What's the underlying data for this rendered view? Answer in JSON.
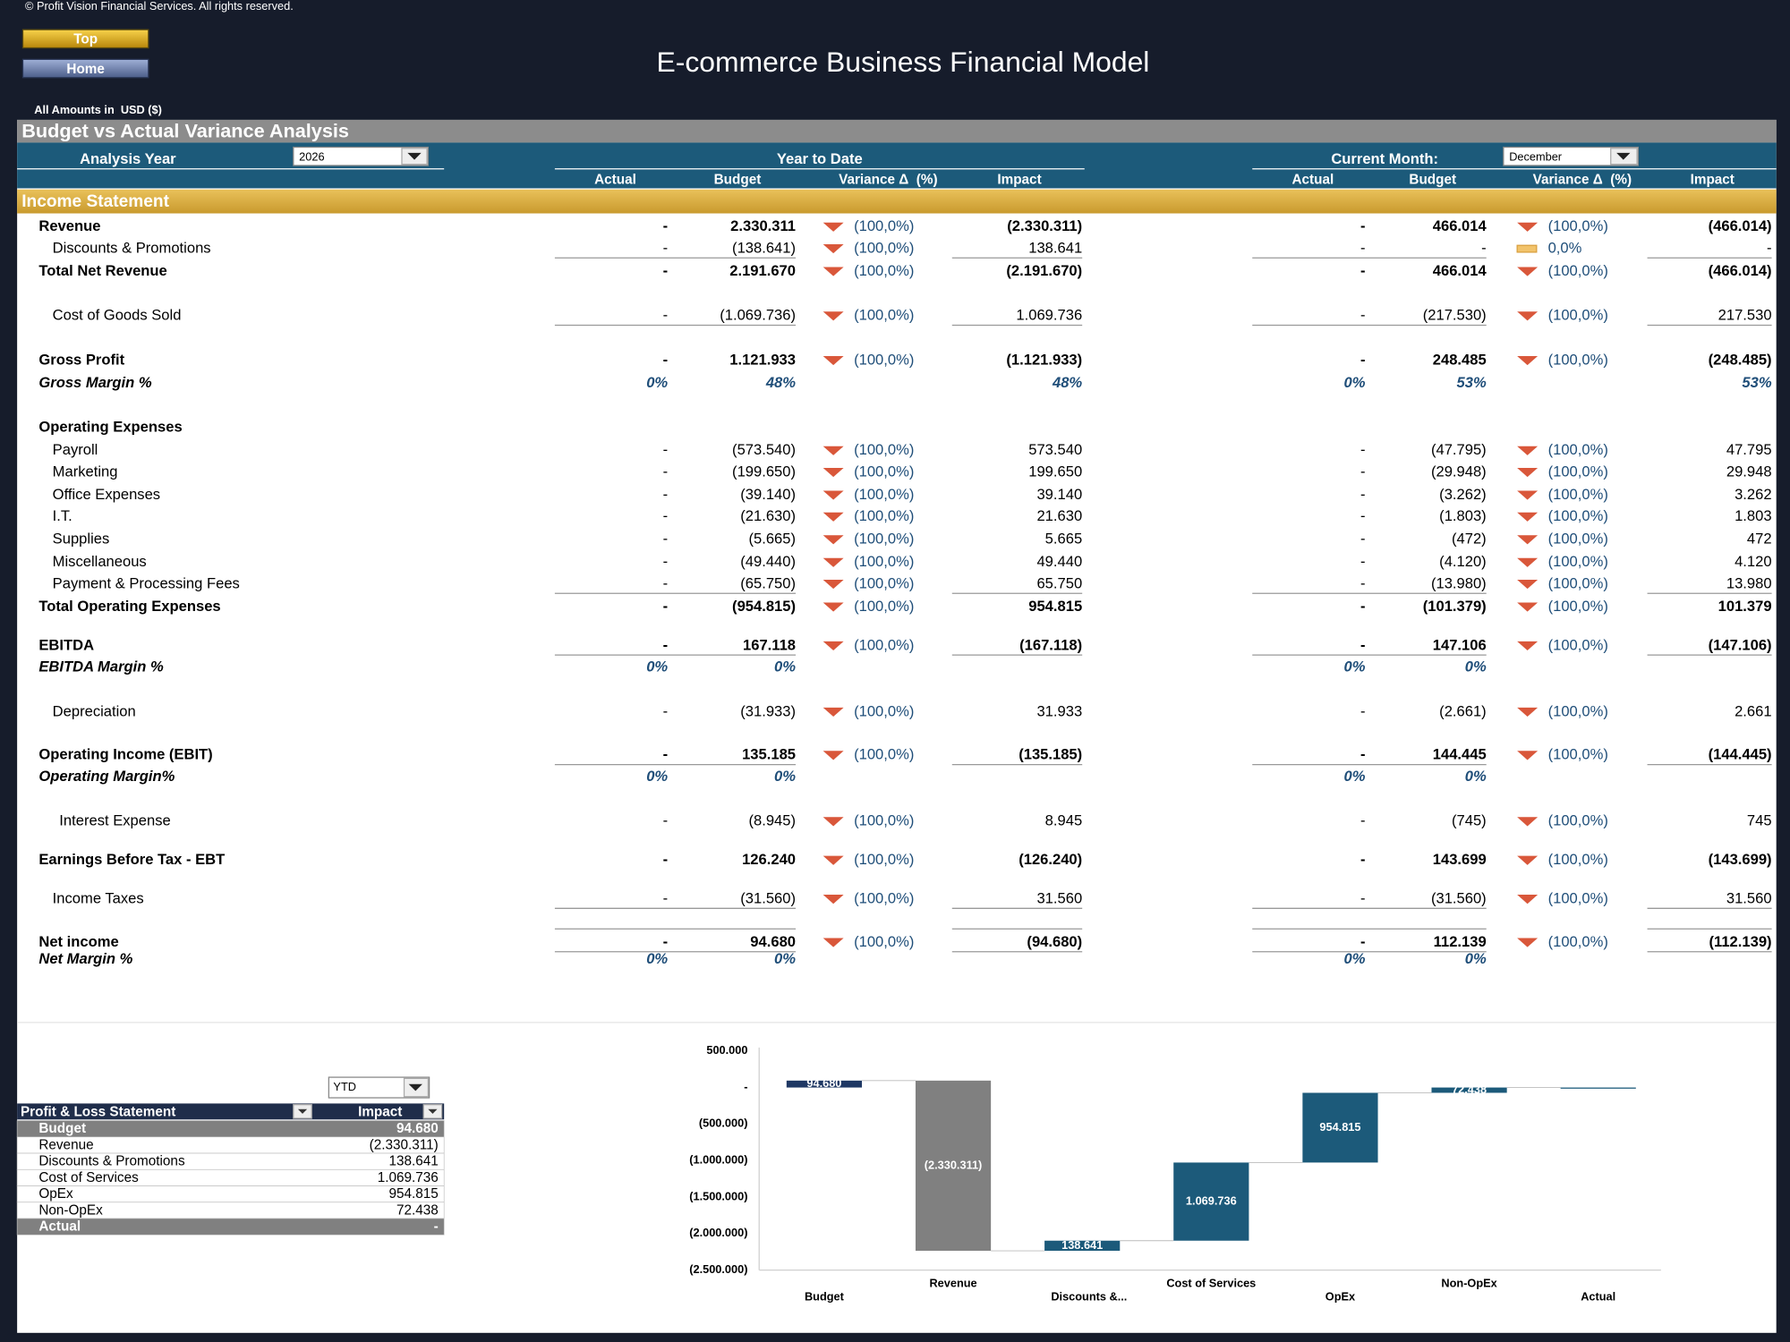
{
  "header": {
    "copyright": "© Profit Vision Financial Services. All rights reserved.",
    "buttons": [
      "Top",
      "Home"
    ],
    "title": "E-commerce Business Financial Model",
    "units": "All Amounts in  USD ($)"
  },
  "section": {
    "title": "Budget vs Actual Variance Analysis",
    "analysis_year_label": "Analysis Year",
    "analysis_year": "2026",
    "ytd_label": "Year to Date",
    "month_label": "Current Month:",
    "month": "December",
    "columns": [
      "Actual",
      "Budget",
      "Variance Δ  (%)",
      "Impact"
    ],
    "statement_title": "Income Statement"
  },
  "table": {
    "rows": [
      [
        "Revenue",
        "-",
        "2.330.311",
        "(100,0%)",
        "(2.330.311)",
        "-",
        "466.014",
        "(100,0%)",
        "(466.014)"
      ],
      [
        "Discounts & Promotions",
        "-",
        "(138.641)",
        "(100,0%)",
        "138.641",
        "-",
        "-",
        "0,0%",
        "-"
      ],
      [
        "Total Net Revenue",
        "-",
        "2.191.670",
        "(100,0%)",
        "(2.191.670)",
        "-",
        "466.014",
        "(100,0%)",
        "(466.014)"
      ],
      [
        "Cost of Goods Sold",
        "-",
        "(1.069.736)",
        "(100,0%)",
        "1.069.736",
        "-",
        "(217.530)",
        "(100,0%)",
        "217.530"
      ],
      [
        "Gross Profit",
        "-",
        "1.121.933",
        "(100,0%)",
        "(1.121.933)",
        "-",
        "248.485",
        "(100,0%)",
        "(248.485)"
      ],
      [
        "Gross Margin %",
        "0%",
        "48%",
        null,
        "48%",
        "0%",
        "53%",
        null,
        "53%"
      ],
      [
        "Operating Expenses",
        null,
        null,
        null,
        null,
        null,
        null,
        null,
        null
      ],
      [
        "Payroll",
        "-",
        "(573.540)",
        "(100,0%)",
        "573.540",
        "-",
        "(47.795)",
        "(100,0%)",
        "47.795"
      ],
      [
        "Marketing",
        "-",
        "(199.650)",
        "(100,0%)",
        "199.650",
        "-",
        "(29.948)",
        "(100,0%)",
        "29.948"
      ],
      [
        "Office Expenses",
        "-",
        "(39.140)",
        "(100,0%)",
        "39.140",
        "-",
        "(3.262)",
        "(100,0%)",
        "3.262"
      ],
      [
        "I.T.",
        "-",
        "(21.630)",
        "(100,0%)",
        "21.630",
        "-",
        "(1.803)",
        "(100,0%)",
        "1.803"
      ],
      [
        "Supplies",
        "-",
        "(5.665)",
        "(100,0%)",
        "5.665",
        "-",
        "(472)",
        "(100,0%)",
        "472"
      ],
      [
        "Miscellaneous",
        "-",
        "(49.440)",
        "(100,0%)",
        "49.440",
        "-",
        "(4.120)",
        "(100,0%)",
        "4.120"
      ],
      [
        "Payment & Processing Fees",
        "-",
        "(65.750)",
        "(100,0%)",
        "65.750",
        "-",
        "(13.980)",
        "(100,0%)",
        "13.980"
      ],
      [
        "Total Operating Expenses",
        "-",
        "(954.815)",
        "(100,0%)",
        "954.815",
        "-",
        "(101.379)",
        "(100,0%)",
        "101.379"
      ],
      [
        "EBITDA",
        "-",
        "167.118",
        "(100,0%)",
        "(167.118)",
        "-",
        "147.106",
        "(100,0%)",
        "(147.106)"
      ],
      [
        "EBITDA Margin %",
        "0%",
        "0%",
        null,
        null,
        "0%",
        "0%",
        null,
        null
      ],
      [
        "Depreciation",
        "-",
        "(31.933)",
        "(100,0%)",
        "31.933",
        "-",
        "(2.661)",
        "(100,0%)",
        "2.661"
      ],
      [
        "Operating Income (EBIT)",
        "-",
        "135.185",
        "(100,0%)",
        "(135.185)",
        "-",
        "144.445",
        "(100,0%)",
        "(144.445)"
      ],
      [
        "Operating Margin%",
        "0%",
        "0%",
        null,
        null,
        "0%",
        "0%",
        null,
        null
      ],
      [
        "Interest Expense",
        "-",
        "(8.945)",
        "(100,0%)",
        "8.945",
        "-",
        "(745)",
        "(100,0%)",
        "745"
      ],
      [
        "Earnings Before Tax - EBT",
        "-",
        "126.240",
        "(100,0%)",
        "(126.240)",
        "-",
        "143.699",
        "(100,0%)",
        "(143.699)"
      ],
      [
        "Income Taxes",
        "-",
        "(31.560)",
        "(100,0%)",
        "31.560",
        "-",
        "(31.560)",
        "(100,0%)",
        "31.560"
      ],
      [
        "Net income",
        "-",
        "94.680",
        "(100,0%)",
        "(94.680)",
        "-",
        "112.139",
        "(100,0%)",
        "(112.139)"
      ],
      [
        "Net Margin %",
        "0%",
        "0%",
        null,
        null,
        "0%",
        "0%",
        null,
        null
      ]
    ]
  },
  "pl_table": {
    "period": "YTD",
    "headers": [
      "Profit & Loss Statement",
      "Impact"
    ],
    "rows": [
      [
        "Budget",
        "94.680"
      ],
      [
        "Revenue",
        "(2.330.311)"
      ],
      [
        "Discounts & Promotions",
        "138.641"
      ],
      [
        "Cost of Services",
        "1.069.736"
      ],
      [
        "OpEx",
        "954.815"
      ],
      [
        "Non-OpEx",
        "72.438"
      ],
      [
        "Actual",
        "-"
      ]
    ]
  },
  "chart_data": {
    "type": "waterfall",
    "categories": [
      "Budget",
      "Revenue",
      "Discounts &...",
      "Cost of Services",
      "OpEx",
      "Non-OpEx",
      "Actual"
    ],
    "values": [
      94680,
      -2330311,
      138641,
      1069736,
      954815,
      72438,
      0
    ],
    "value_labels": [
      "94.680",
      "(2.330.311)",
      "138.641",
      "1.069.736",
      "954.815",
      "72.438",
      null
    ],
    "colors": [
      "#1f3864",
      "#808080",
      "#1c5a7a",
      "#1c5a7a",
      "#1c5a7a",
      "#1c5a7a",
      "#1c5a7a"
    ],
    "ylim": [
      -2500000,
      500000
    ],
    "yticks": [
      {
        "value": 500000,
        "label": "500.000"
      },
      {
        "value": 0,
        "label": "-"
      },
      {
        "value": -500000,
        "label": "(500.000)"
      },
      {
        "value": -1000000,
        "label": "(1.000.000)"
      },
      {
        "value": -1500000,
        "label": "(1.500.000)"
      },
      {
        "value": -2000000,
        "label": "(2.000.000)"
      },
      {
        "value": -2500000,
        "label": "(2.500.000)"
      }
    ]
  }
}
